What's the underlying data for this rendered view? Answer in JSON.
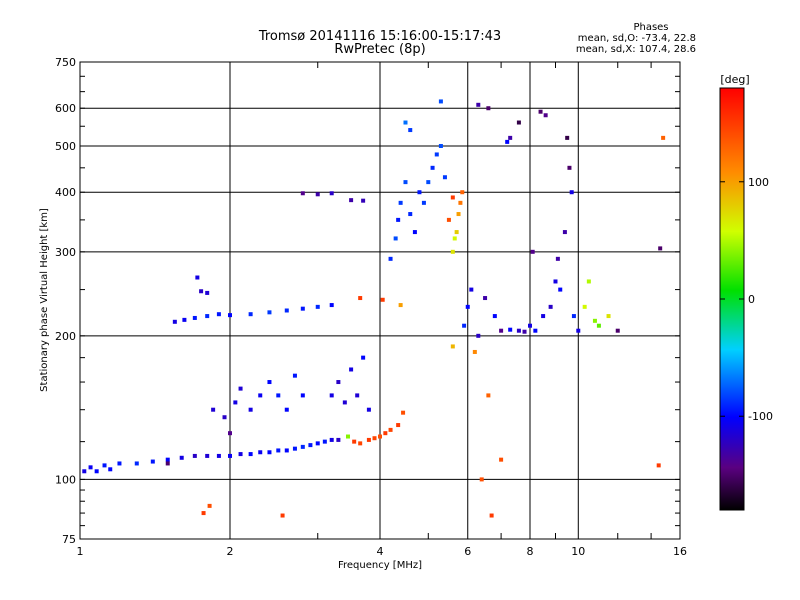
{
  "chart_data": {
    "type": "scatter",
    "title": "Tromsø 20141116 15:16:00-15:17:43",
    "subtitle": "RwPretec (8p)",
    "xlabel": "Frequency [MHz]",
    "ylabel": "Stationary phase Virtual Height [km]",
    "x_scale": "log",
    "y_scale": "log",
    "xlim": [
      1,
      16
    ],
    "ylim": [
      75,
      750
    ],
    "grid": true,
    "x_ticks": [
      "1",
      "2",
      "4",
      "6",
      "8",
      "10",
      "16"
    ],
    "y_ticks": [
      "75",
      "100",
      "200",
      "300",
      "400",
      "500",
      "600",
      "750"
    ],
    "stats": {
      "heading": "Phases",
      "line_o": "mean, sd,O: -73.4, 22.8",
      "line_x": "mean, sd,X: 107.4, 28.6"
    },
    "colorbar": {
      "label": "[deg]",
      "ticks": [
        "100",
        "0",
        "-100"
      ],
      "range": [
        -180,
        180
      ],
      "colormap": "rainbow"
    },
    "series": [
      {
        "points": [
          [
            1.02,
            104,
            -110
          ],
          [
            1.05,
            106,
            -105
          ],
          [
            1.08,
            104,
            -100
          ],
          [
            1.12,
            107,
            -95
          ],
          [
            1.15,
            105,
            -100
          ],
          [
            1.2,
            108,
            -95
          ],
          [
            1.3,
            108,
            -90
          ],
          [
            1.4,
            109,
            -95
          ],
          [
            1.5,
            110,
            -100
          ],
          [
            1.6,
            111,
            -110
          ],
          [
            1.7,
            112,
            -120
          ],
          [
            1.8,
            112,
            -115
          ],
          [
            1.9,
            112,
            -110
          ],
          [
            2.0,
            112,
            -105
          ],
          [
            2.1,
            113,
            -110
          ],
          [
            2.2,
            113,
            -100
          ],
          [
            2.3,
            114,
            -105
          ],
          [
            2.4,
            114,
            -100
          ],
          [
            2.5,
            115,
            -95
          ],
          [
            2.6,
            115,
            -100
          ],
          [
            2.7,
            116,
            -95
          ],
          [
            2.8,
            117,
            -90
          ],
          [
            2.9,
            118,
            -95
          ],
          [
            3.0,
            119,
            -100
          ],
          [
            3.1,
            120,
            -95
          ],
          [
            3.2,
            121,
            -110
          ],
          [
            3.3,
            121,
            -120
          ],
          [
            1.55,
            214,
            -110
          ],
          [
            1.62,
            216,
            -105
          ],
          [
            1.7,
            218,
            -95
          ],
          [
            1.8,
            220,
            -90
          ],
          [
            1.9,
            222,
            -95
          ],
          [
            2.0,
            221,
            -100
          ],
          [
            2.2,
            222,
            -90
          ],
          [
            2.4,
            224,
            -85
          ],
          [
            2.6,
            226,
            -90
          ],
          [
            2.8,
            228,
            -95
          ],
          [
            3.0,
            230,
            -90
          ],
          [
            3.2,
            232,
            -100
          ],
          [
            1.72,
            265,
            -110
          ],
          [
            1.75,
            248,
            -120
          ],
          [
            1.8,
            246,
            -115
          ],
          [
            2.8,
            398,
            -140
          ],
          [
            3.0,
            396,
            -130
          ],
          [
            3.2,
            398,
            -120
          ],
          [
            3.5,
            385,
            -130
          ],
          [
            3.7,
            384,
            -125
          ],
          [
            1.85,
            140,
            -115
          ],
          [
            1.95,
            135,
            -120
          ],
          [
            2.05,
            145,
            -110
          ],
          [
            2.1,
            155,
            -115
          ],
          [
            2.2,
            140,
            -110
          ],
          [
            2.3,
            150,
            -105
          ],
          [
            2.4,
            160,
            -100
          ],
          [
            2.5,
            150,
            -95
          ],
          [
            2.6,
            140,
            -100
          ],
          [
            2.7,
            165,
            -95
          ],
          [
            2.8,
            150,
            -100
          ],
          [
            3.2,
            150,
            -110
          ],
          [
            3.3,
            160,
            -120
          ],
          [
            3.4,
            145,
            -115
          ],
          [
            3.5,
            170,
            -110
          ],
          [
            3.6,
            150,
            -115
          ],
          [
            3.7,
            180,
            -100
          ],
          [
            3.8,
            140,
            -110
          ],
          [
            3.45,
            123,
            40
          ],
          [
            3.55,
            120,
            150
          ],
          [
            3.65,
            119,
            145
          ],
          [
            3.8,
            121,
            150
          ],
          [
            3.9,
            122,
            145
          ],
          [
            4.0,
            123,
            140
          ],
          [
            4.1,
            125,
            150
          ],
          [
            4.2,
            127,
            145
          ],
          [
            4.35,
            130,
            150
          ],
          [
            4.45,
            138,
            140
          ],
          [
            4.2,
            290,
            -90
          ],
          [
            4.3,
            320,
            -80
          ],
          [
            4.35,
            350,
            -95
          ],
          [
            4.4,
            380,
            -85
          ],
          [
            4.5,
            420,
            -80
          ],
          [
            4.6,
            360,
            -90
          ],
          [
            4.7,
            330,
            -100
          ],
          [
            4.8,
            400,
            -95
          ],
          [
            4.9,
            380,
            -85
          ],
          [
            5.0,
            420,
            -80
          ],
          [
            5.1,
            450,
            -90
          ],
          [
            5.2,
            480,
            -85
          ],
          [
            5.3,
            500,
            -80
          ],
          [
            5.4,
            430,
            -85
          ],
          [
            4.5,
            560,
            -70
          ],
          [
            4.6,
            540,
            -85
          ],
          [
            5.3,
            620,
            -80
          ],
          [
            5.6,
            300,
            70
          ],
          [
            5.65,
            320,
            60
          ],
          [
            5.7,
            330,
            80
          ],
          [
            5.75,
            360,
            100
          ],
          [
            5.8,
            380,
            120
          ],
          [
            5.85,
            400,
            130
          ],
          [
            5.5,
            350,
            140
          ],
          [
            5.6,
            390,
            150
          ],
          [
            5.9,
            210,
            -90
          ],
          [
            6.0,
            230,
            -100
          ],
          [
            6.1,
            250,
            -110
          ],
          [
            6.3,
            200,
            -120
          ],
          [
            6.5,
            240,
            -130
          ],
          [
            6.8,
            220,
            -100
          ],
          [
            7.0,
            205,
            -140
          ],
          [
            7.3,
            206,
            -100
          ],
          [
            7.6,
            205,
            -120
          ],
          [
            7.8,
            204,
            -130
          ],
          [
            8.0,
            210,
            -110
          ],
          [
            8.2,
            205,
            -100
          ],
          [
            8.5,
            220,
            -110
          ],
          [
            8.8,
            230,
            -120
          ],
          [
            9.0,
            260,
            -110
          ],
          [
            9.2,
            250,
            -100
          ],
          [
            9.5,
            520,
            -160
          ],
          [
            9.6,
            450,
            -150
          ],
          [
            9.7,
            400,
            -110
          ],
          [
            9.4,
            330,
            -130
          ],
          [
            9.8,
            220,
            -90
          ],
          [
            10.0,
            205,
            -110
          ],
          [
            10.3,
            230,
            60
          ],
          [
            10.5,
            260,
            50
          ],
          [
            10.8,
            215,
            40
          ],
          [
            11.0,
            210,
            30
          ],
          [
            11.5,
            220,
            70
          ],
          [
            12.0,
            205,
            -150
          ],
          [
            7.3,
            520,
            -130
          ],
          [
            7.6,
            560,
            -160
          ],
          [
            8.4,
            590,
            -150
          ],
          [
            8.6,
            580,
            -140
          ],
          [
            6.3,
            610,
            -130
          ],
          [
            6.6,
            600,
            -150
          ],
          [
            7.2,
            510,
            -100
          ],
          [
            8.1,
            300,
            -140
          ],
          [
            9.1,
            290,
            -130
          ],
          [
            14.8,
            520,
            130
          ],
          [
            14.6,
            305,
            -150
          ],
          [
            14.5,
            107,
            150
          ],
          [
            1.77,
            85,
            150
          ],
          [
            2.55,
            84,
            150
          ],
          [
            1.82,
            88,
            140
          ],
          [
            6.7,
            84,
            150
          ],
          [
            6.4,
            100,
            140
          ],
          [
            5.6,
            190,
            90
          ],
          [
            6.2,
            185,
            110
          ],
          [
            6.6,
            150,
            130
          ],
          [
            7.0,
            110,
            140
          ],
          [
            2.0,
            125,
            -140
          ],
          [
            1.5,
            108,
            -150
          ],
          [
            3.65,
            240,
            150
          ],
          [
            4.05,
            238,
            150
          ],
          [
            4.4,
            232,
            100
          ]
        ]
      }
    ]
  }
}
